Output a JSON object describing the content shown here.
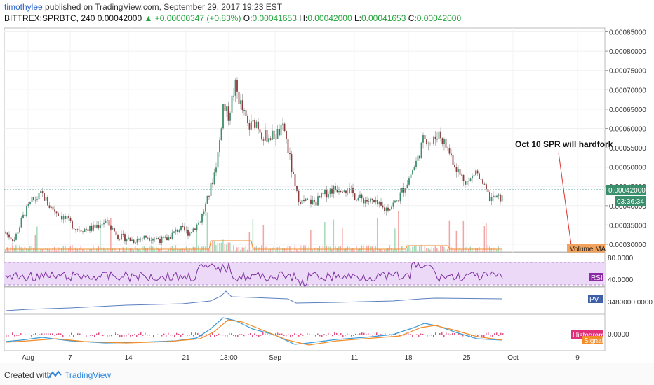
{
  "header": {
    "author": "timothylee",
    "published": " published on TradingView.com, September 29, 2017 19:23 EST",
    "symbol": "BITTREX:SPRBTC, 240",
    "last": "0.00042000",
    "change": "▲ +0.00000347 (+0.83%)",
    "o_label": "O:",
    "o_val": "0.00041653",
    "h_label": "H:",
    "h_val": "0.00042000",
    "l_label": "L:",
    "l_val": "0.00041653",
    "c_label": "C:",
    "c_val": "0.00042000"
  },
  "price_axis": {
    "ticks": [
      "0.00085000",
      "0.00080000",
      "0.00075000",
      "0.00070000",
      "0.00065000",
      "0.00060000",
      "0.00055000",
      "0.00050000",
      "0.00045000",
      "0.00040000",
      "0.00035000",
      "0.00030000"
    ],
    "current_label": "0.00042000",
    "countdown_label": "03:36:34"
  },
  "time_axis": {
    "ticks": [
      "Aug",
      "7",
      "14",
      "21",
      "13:00",
      "Sep",
      "11",
      "18",
      "25",
      "Oct",
      "9"
    ]
  },
  "annotation": {
    "text": "Oct 10 SPR will hardfork"
  },
  "panels": {
    "volume_label": "Volume MA",
    "rsi_label": "RSI",
    "rsi_ticks": [
      "80.0000",
      "40.0000"
    ],
    "pvt_label": "PVT",
    "pvt_tick": "3480000.0000",
    "macd_hist_label": "Histogram",
    "macd_signal_label": "Signal",
    "macd_tick": "0.0000"
  },
  "colors": {
    "up": "#3a8f6c",
    "down": "#8b3a3a",
    "rsi_band": "#e8d4f5",
    "rsi_line": "#7b2fa0",
    "pvt_line": "#5b7fbf",
    "macd_line": "#3a9bd9",
    "signal_line": "#f28c28",
    "hist": "#e05080",
    "volume_ma": "#f28c28"
  },
  "footer": {
    "created": "Created with",
    "brand": "TradingView"
  },
  "chart_data": {
    "type": "candlestick",
    "title": "BITTREX:SPRBTC, 240",
    "ylim": [
      0.00028,
      0.00086
    ],
    "x": [
      "Aug 1",
      "Aug 3",
      "Aug 5",
      "Aug 7",
      "Aug 9",
      "Aug 11",
      "Aug 14",
      "Aug 17",
      "Aug 20",
      "Aug 22",
      "Aug 24",
      "Aug 26",
      "Aug 28",
      "Aug 30",
      "Sep 1",
      "Sep 3",
      "Sep 5",
      "Sep 8",
      "Sep 11",
      "Sep 14",
      "Sep 16",
      "Sep 18",
      "Sep 20",
      "Sep 22",
      "Sep 24",
      "Sep 26",
      "Sep 28",
      "Sep 29"
    ],
    "close": [
      0.00032,
      0.0004,
      0.00042,
      0.00039,
      0.00037,
      0.00033,
      0.00032,
      0.00031,
      0.00033,
      0.00034,
      0.00045,
      0.00066,
      0.00071,
      0.00062,
      0.0006,
      0.00055,
      0.00041,
      0.00042,
      0.00047,
      0.00041,
      0.00039,
      0.00043,
      0.00051,
      0.00058,
      0.00055,
      0.00048,
      0.00043,
      0.00042
    ]
  }
}
